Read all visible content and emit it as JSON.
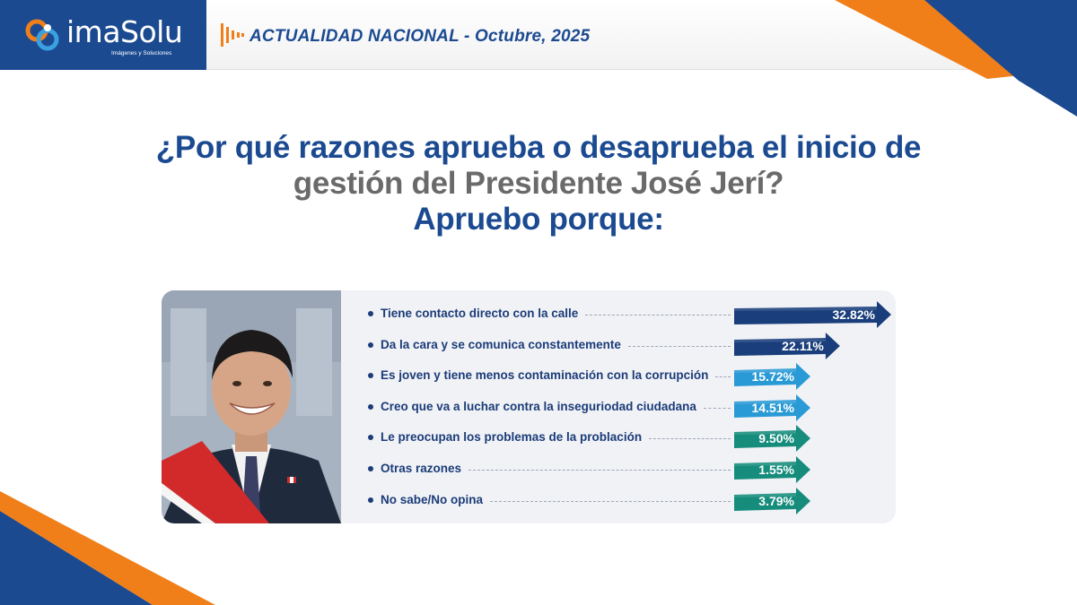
{
  "header": {
    "logo_text": "imaSolu",
    "logo_tagline": "Imágenes y Soluciones",
    "title": "ACTUALIDAD NACIONAL - Octubre, 2025"
  },
  "question": {
    "line1": "¿Por qué razones aprueba o desaprueba el inicio de",
    "line2": "gestión del Presidente José Jerí?",
    "line3": "Apruebo porque:"
  },
  "colors": {
    "brand_blue": "#1b4a91",
    "accent_orange": "#f07f1a",
    "bar_dark_blue": "#193e7b",
    "bar_light_blue": "#2a9ad6",
    "bar_teal": "#158c7c"
  },
  "chart_data": {
    "type": "bar",
    "orientation": "horizontal",
    "categories": [
      "Tiene contacto directo con la calle",
      "Da la cara y se comunica constantemente",
      "Es joven y tiene menos contaminación con la corrupción",
      "Creo que va a luchar contra la inseguriodad ciudadana",
      "Le preocupan los problemas de la problación",
      "Otras razones",
      "No sabe/No opina"
    ],
    "values": [
      32.82,
      22.11,
      15.72,
      14.51,
      9.5,
      1.55,
      3.79
    ],
    "value_labels": [
      "32.82%",
      "22.11%",
      "15.72%",
      "14.51%",
      "9.50%",
      "1.55%",
      "3.79%"
    ],
    "bar_colors": [
      "#193e7b",
      "#193e7b",
      "#2a9ad6",
      "#2a9ad6",
      "#158c7c",
      "#158c7c",
      "#158c7c"
    ],
    "unit": "%",
    "title": "",
    "xlabel": "",
    "ylabel": "",
    "grid": false,
    "legend": "none"
  }
}
